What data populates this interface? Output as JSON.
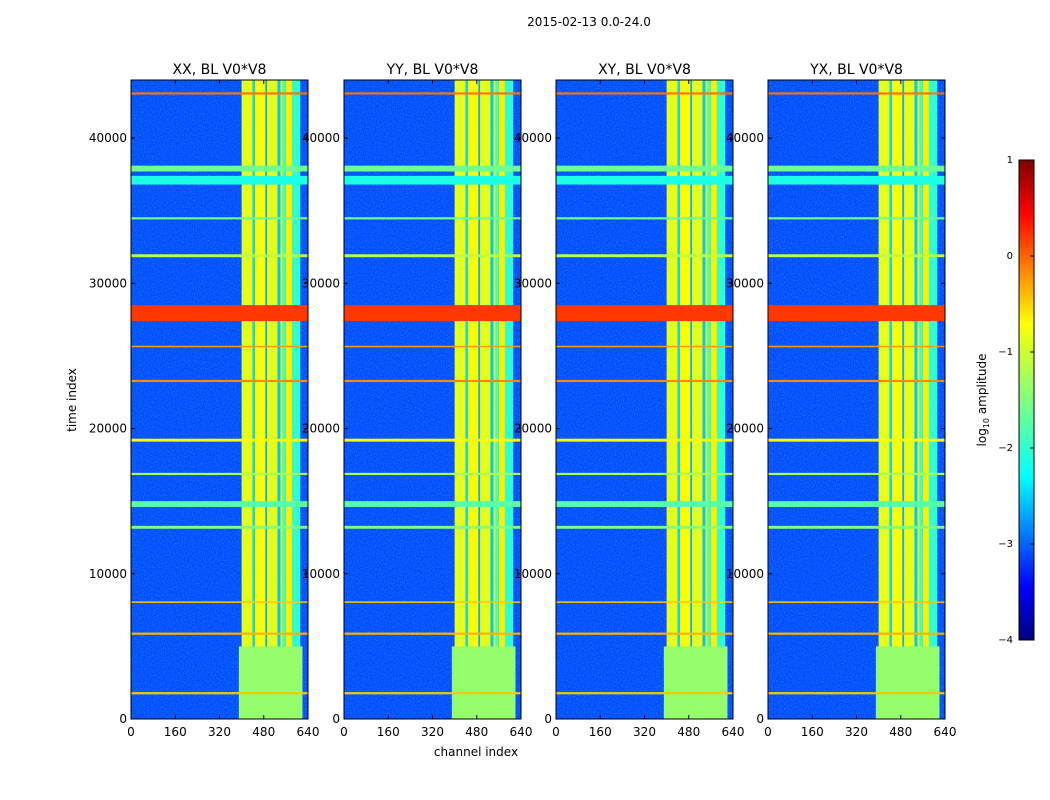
{
  "figure_title": "2015-02-13 0.0-24.0",
  "colormap": "jet",
  "chart_data": {
    "type": "heatmap",
    "title": "2015-02-13 0.0-24.0",
    "xlabel": "channel index",
    "ylabel": "time index",
    "xlim": [
      0,
      640
    ],
    "ylim": [
      0,
      44000
    ],
    "xticks": [
      0,
      160,
      320,
      480,
      640
    ],
    "yticks": [
      0,
      10000,
      20000,
      30000,
      40000
    ],
    "panels": [
      {
        "title": "XX, BL V0*V8",
        "polarization": "XX"
      },
      {
        "title": "YY, BL V0*V8",
        "polarization": "YY"
      },
      {
        "title": "XY, BL V0*V8",
        "polarization": "XY"
      },
      {
        "title": "YX, BL V0*V8",
        "polarization": "YX"
      }
    ],
    "value_range": [
      -4,
      1
    ],
    "background_level": -3.0,
    "rfi_channel_bands": [
      {
        "x0": 400,
        "x1": 440,
        "level": -1.0
      },
      {
        "x0": 440,
        "x1": 448,
        "level": -2.3
      },
      {
        "x0": 448,
        "x1": 486,
        "level": -0.9
      },
      {
        "x0": 486,
        "x1": 492,
        "level": -2.5
      },
      {
        "x0": 492,
        "x1": 530,
        "level": -1.0
      },
      {
        "x0": 530,
        "x1": 540,
        "level": -2.4
      },
      {
        "x0": 540,
        "x1": 548,
        "level": -1.1
      },
      {
        "x0": 548,
        "x1": 560,
        "level": -1.8
      },
      {
        "x0": 560,
        "x1": 582,
        "level": -0.8
      },
      {
        "x0": 582,
        "x1": 612,
        "level": -1.9
      }
    ],
    "low_time_region": {
      "t0": 0,
      "t1": 5000,
      "x0": 390,
      "x1": 620,
      "level": -1.4
    },
    "horizontal_flag_lines": [
      {
        "t0": 27400,
        "t1": 28500,
        "level": 0.1
      },
      {
        "t0": 36800,
        "t1": 37400,
        "level": -2.0
      },
      {
        "t0": 37700,
        "t1": 38100,
        "level": -1.6
      },
      {
        "t0": 14600,
        "t1": 15000,
        "level": -1.7
      },
      {
        "t0": 13100,
        "t1": 13300,
        "level": -1.5
      },
      {
        "t0": 19100,
        "t1": 19300,
        "level": -0.9
      },
      {
        "t0": 31800,
        "t1": 32000,
        "level": -1.2
      },
      {
        "t0": 23200,
        "t1": 23350,
        "level": -0.3
      },
      {
        "t0": 43000,
        "t1": 43150,
        "level": -0.2
      },
      {
        "t0": 34400,
        "t1": 34550,
        "level": -1.6
      },
      {
        "t0": 25600,
        "t1": 25700,
        "level": -0.4
      },
      {
        "t0": 5800,
        "t1": 5950,
        "level": -0.5
      },
      {
        "t0": 8000,
        "t1": 8100,
        "level": -0.6
      },
      {
        "t0": 16800,
        "t1": 16950,
        "level": -1.3
      },
      {
        "t0": 1700,
        "t1": 1850,
        "level": -0.6
      }
    ],
    "colorbar": {
      "label": "log10 amplitude",
      "label_main": "log",
      "label_sub": "10",
      "label_rest": " amplitude",
      "ticks": [
        1,
        0,
        -1,
        -2,
        -3,
        -4
      ],
      "tick_labels": [
        "1",
        "0",
        "−1",
        "−2",
        "−3",
        "−4"
      ]
    }
  }
}
